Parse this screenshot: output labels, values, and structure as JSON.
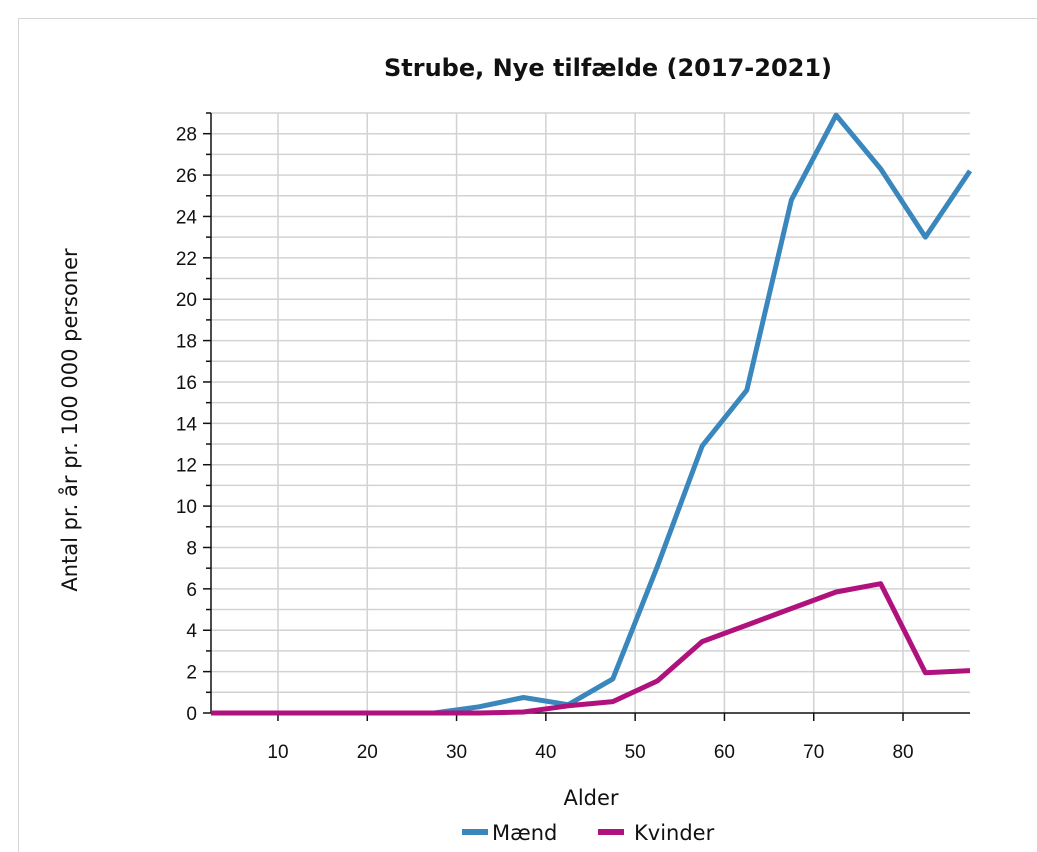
{
  "chart_data": {
    "type": "line",
    "title": "Strube, Nye tilfælde (2017-2021)",
    "xlabel": "Alder",
    "ylabel": "Antal pr. år pr. 100 000 personer",
    "xlim": [
      2.5,
      87.5
    ],
    "ylim": [
      0,
      29
    ],
    "x_ticks": [
      10,
      20,
      30,
      40,
      50,
      60,
      70,
      80
    ],
    "y_ticks": [
      0,
      2,
      4,
      6,
      8,
      10,
      12,
      14,
      16,
      18,
      20,
      22,
      24,
      26,
      28
    ],
    "grid": true,
    "legend_position": "bottom",
    "x": [
      2.5,
      7.5,
      12.5,
      17.5,
      22.5,
      27.5,
      32.5,
      37.5,
      42.5,
      47.5,
      52.5,
      57.5,
      62.5,
      67.5,
      72.5,
      77.5,
      82.5,
      87.5
    ],
    "series": [
      {
        "name": "Mænd",
        "color": "#3a87bd",
        "values": [
          0,
          0,
          0,
          0,
          0,
          0,
          0.3,
          0.75,
          0.4,
          1.65,
          7.1,
          12.9,
          15.6,
          24.8,
          28.9,
          26.3,
          23.0,
          26.2
        ]
      },
      {
        "name": "Kvinder",
        "color": "#b0117d",
        "values": [
          0,
          0,
          0,
          0,
          0,
          0,
          0,
          0.05,
          0.35,
          0.55,
          1.55,
          3.45,
          4.25,
          5.05,
          5.85,
          6.25,
          1.95,
          2.05
        ]
      }
    ]
  }
}
